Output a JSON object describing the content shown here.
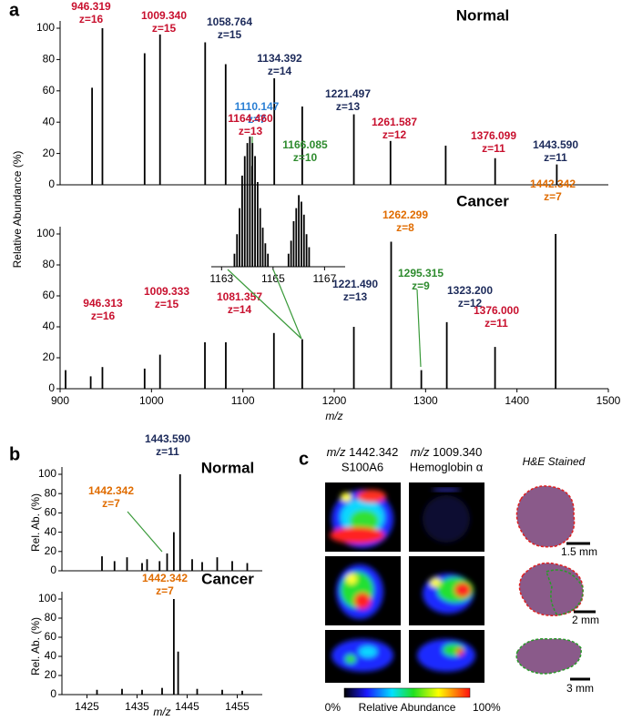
{
  "chart_data": [
    {
      "type": "stem",
      "panel": "a",
      "title": "Normal",
      "ylabel": "Relative Abundance (%)",
      "color": "#000000",
      "leader_color": "#3a9a3a",
      "xlim": [
        900,
        1500
      ],
      "ylim": [
        0,
        100
      ],
      "yticks": [
        0,
        20,
        40,
        60,
        80,
        100
      ],
      "x": [
        935.0,
        946.319,
        992.5,
        1009.34,
        1058.764,
        1081.2,
        1110.147,
        1134.392,
        1165.0,
        1221.497,
        1261.587,
        1322.0,
        1376.099,
        1443.59
      ],
      "values": [
        62,
        100,
        84,
        96,
        91,
        77,
        12,
        68,
        50,
        45,
        28,
        25,
        17,
        13
      ],
      "annotations": [
        {
          "label": "946.319",
          "charge": "z=16",
          "color": "#c8102e"
        },
        {
          "label": "1009.340",
          "charge": "z=15",
          "color": "#c8102e"
        },
        {
          "label": "1058.764",
          "charge": "z=15",
          "color": "#1c2a5a"
        },
        {
          "label": "1110.147",
          "charge": "z=7",
          "color": "#2a7fd4"
        },
        {
          "label": "1134.392",
          "charge": "z=14",
          "color": "#1c2a5a"
        },
        {
          "label": "1221.497",
          "charge": "z=13",
          "color": "#1c2a5a"
        },
        {
          "label": "1261.587",
          "charge": "z=12",
          "color": "#c8102e"
        },
        {
          "label": "1376.099",
          "charge": "z=11",
          "color": "#c8102e"
        },
        {
          "label": "1443.590",
          "charge": "z=11",
          "color": "#1c2a5a"
        }
      ]
    },
    {
      "type": "stem",
      "title": "Cancer",
      "xlabel": "m/z",
      "color": "#000000",
      "leader_color": "#3a9a3a",
      "xlim": [
        900,
        1500
      ],
      "ylim": [
        0,
        100
      ],
      "yticks": [
        0,
        20,
        40,
        60,
        80,
        100
      ],
      "xticks": [
        900,
        1000,
        1100,
        1200,
        1300,
        1400,
        1500
      ],
      "x": [
        906.0,
        933.5,
        946.313,
        992.5,
        1009.333,
        1058.5,
        1081.357,
        1134.0,
        1165.0,
        1221.49,
        1262.299,
        1295.315,
        1323.2,
        1376.0,
        1442.342
      ],
      "values": [
        12,
        8,
        14,
        13,
        22,
        30,
        30,
        36,
        32,
        40,
        95,
        12,
        43,
        27,
        100
      ],
      "annotations": [
        {
          "label": "946.313",
          "charge": "z=16",
          "color": "#c8102e"
        },
        {
          "label": "1009.333",
          "charge": "z=15",
          "color": "#c8102e"
        },
        {
          "label": "1081.357",
          "charge": "z=14",
          "color": "#c8102e"
        },
        {
          "label": "1221.490",
          "charge": "z=13",
          "color": "#1c2a5a"
        },
        {
          "label": "1262.299",
          "charge": "z=8",
          "color": "#e06c00"
        },
        {
          "label": "1295.315",
          "charge": "z=9",
          "color": "#2e8b2e"
        },
        {
          "label": "1323.200",
          "charge": "z=12",
          "color": "#1c2a5a"
        },
        {
          "label": "1376.000",
          "charge": "z=11",
          "color": "#c8102e"
        },
        {
          "label": "1442.342",
          "charge": "z=7",
          "color": "#e06c00"
        }
      ]
    },
    {
      "type": "stem",
      "color": "#000000",
      "leader_color": "#3a9a3a",
      "xlim": [
        1162.6,
        1167.8
      ],
      "ylim": [
        0,
        100
      ],
      "xticks": [
        1163,
        1165,
        1167
      ],
      "x": [
        1163.5,
        1163.6,
        1163.7,
        1163.8,
        1163.9,
        1164.0,
        1164.1,
        1164.2,
        1164.3,
        1164.4,
        1164.5,
        1164.6,
        1164.7,
        1164.8,
        1165.6,
        1165.7,
        1165.8,
        1165.9,
        1166.0,
        1166.1,
        1166.2,
        1166.3,
        1166.4
      ],
      "values": [
        10,
        25,
        45,
        70,
        85,
        95,
        100,
        95,
        85,
        65,
        45,
        30,
        18,
        10,
        10,
        20,
        35,
        45,
        55,
        50,
        40,
        25,
        15
      ],
      "annotations": [
        {
          "label": "1164.460",
          "charge": "z=13",
          "color": "#c8102e"
        },
        {
          "label": "1166.085",
          "charge": "z=10",
          "color": "#2e8b2e"
        }
      ]
    },
    {
      "type": "stem",
      "panel": "b",
      "title": "Normal",
      "ylabel": "Rel. Ab. (%)",
      "color": "#000000",
      "leader_color": "#3a9a3a",
      "xlim": [
        1420,
        1460
      ],
      "ylim": [
        0,
        100
      ],
      "yticks": [
        0,
        20,
        40,
        60,
        80,
        100
      ],
      "x": [
        1428.0,
        1430.5,
        1433.0,
        1436.0,
        1437.0,
        1439.5,
        1441.0,
        1442.342,
        1443.59,
        1446.0,
        1448.0,
        1451.0,
        1454.0,
        1457.0
      ],
      "values": [
        15,
        10,
        14,
        8,
        12,
        10,
        18,
        40,
        100,
        12,
        9,
        14,
        10,
        8
      ],
      "annotations": [
        {
          "label": "1443.590",
          "charge": "z=11",
          "color": "#1c2a5a"
        },
        {
          "label": "1442.342",
          "charge": "z=7",
          "color": "#e06c00"
        }
      ]
    },
    {
      "type": "stem",
      "title": "Cancer",
      "ylabel": "Rel. Ab. (%)",
      "xlabel": "m/z",
      "color": "#000000",
      "xlim": [
        1420,
        1460
      ],
      "ylim": [
        0,
        100
      ],
      "yticks": [
        0,
        20,
        40,
        60,
        80,
        100
      ],
      "xticks": [
        1425,
        1435,
        1445,
        1455
      ],
      "x": [
        1427.0,
        1432.0,
        1436.0,
        1440.0,
        1442.342,
        1443.2,
        1447.0,
        1452.0,
        1456.0
      ],
      "values": [
        5,
        6,
        5,
        7,
        100,
        45,
        6,
        5,
        4
      ],
      "annotations": [
        {
          "label": "1442.342",
          "charge": "z=7",
          "color": "#e06c00"
        }
      ]
    }
  ],
  "panel_c": {
    "label": "c",
    "columns": [
      {
        "prefix": "m/z",
        "mz": "1442.342",
        "name": "S100A6"
      },
      {
        "prefix": "m/z",
        "mz": "1009.340",
        "name": "Hemoglobin α"
      },
      {
        "name": "H&E Stained"
      }
    ],
    "scale_bars": [
      "1.5 mm",
      "2 mm",
      "3 mm"
    ],
    "colorbar": {
      "min": "0%",
      "label": "Relative Abundance",
      "max": "100%"
    }
  }
}
